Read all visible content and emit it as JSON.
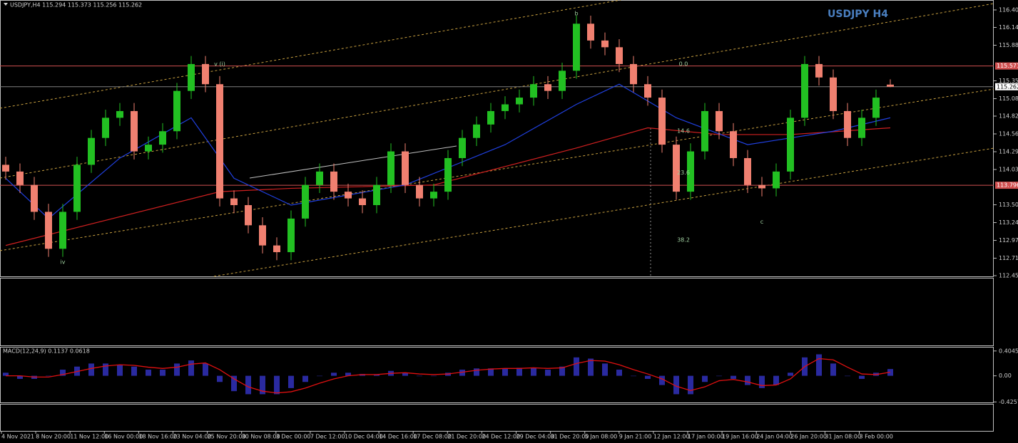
{
  "chart_data": {
    "type": "candlestick",
    "header": "USDJPY,H4  115.294 115.373 115.256 115.262",
    "title": "USDJPY H4",
    "ylim": [
      112.44,
      116.553
    ],
    "yticks": [
      116.405,
      116.145,
      {
        "value": 115.88,
        "label": "115.880"
      },
      115.35,
      115.085,
      114.825,
      {
        "value": 114.56,
        "label": "114.560"
      },
      114.295,
      {
        "value": 114.03,
        "label": "114.030"
      },
      113.505,
      {
        "value": 113.24,
        "label": "113.240"
      },
      112.975,
      {
        "value": 112.71,
        "label": "112.710"
      },
      {
        "value": 112.45,
        "label": "112.450"
      }
    ],
    "levels": [
      {
        "value": 115.571,
        "color": "#d05050"
      },
      {
        "value": 115.262,
        "color": "#808080"
      },
      {
        "value": 113.796,
        "color": "#d05050"
      }
    ],
    "up_color": "#22c022",
    "down_color": "#f08070",
    "ohlc": [
      [
        114.1,
        114.22,
        113.88,
        114.0
      ],
      [
        114.0,
        114.12,
        113.68,
        113.8
      ],
      [
        113.8,
        113.92,
        113.28,
        113.4
      ],
      [
        113.4,
        113.52,
        112.73,
        112.85
      ],
      [
        112.85,
        113.52,
        112.73,
        113.4
      ],
      [
        113.4,
        114.22,
        113.28,
        114.1
      ],
      [
        114.1,
        114.62,
        113.98,
        114.5
      ],
      [
        114.5,
        114.92,
        114.38,
        114.8
      ],
      [
        114.8,
        115.02,
        114.68,
        114.9
      ],
      [
        114.9,
        115.02,
        114.18,
        114.3
      ],
      [
        114.3,
        114.52,
        114.18,
        114.4
      ],
      [
        114.4,
        114.72,
        114.28,
        114.6
      ],
      [
        114.6,
        115.32,
        114.48,
        115.2
      ],
      [
        115.2,
        115.72,
        115.08,
        115.6
      ],
      [
        115.6,
        115.72,
        115.18,
        115.3
      ],
      [
        115.3,
        115.42,
        113.48,
        113.6
      ],
      [
        113.6,
        113.72,
        113.38,
        113.5
      ],
      [
        113.5,
        113.62,
        113.08,
        113.2
      ],
      [
        113.2,
        113.32,
        112.78,
        112.9
      ],
      [
        112.9,
        113.02,
        112.68,
        112.8
      ],
      [
        112.8,
        113.42,
        112.68,
        113.3
      ],
      [
        113.3,
        113.92,
        113.18,
        113.8
      ],
      [
        113.8,
        114.12,
        113.68,
        114.0
      ],
      [
        114.0,
        114.12,
        113.58,
        113.7
      ],
      [
        113.7,
        113.82,
        113.48,
        113.6
      ],
      [
        113.6,
        113.72,
        113.38,
        113.5
      ],
      [
        113.5,
        113.92,
        113.38,
        113.8
      ],
      [
        113.8,
        114.42,
        113.68,
        114.3
      ],
      [
        114.3,
        114.42,
        113.68,
        113.8
      ],
      [
        113.8,
        113.92,
        113.48,
        113.6
      ],
      [
        113.6,
        113.82,
        113.48,
        113.7
      ],
      [
        113.7,
        114.32,
        113.58,
        114.2
      ],
      [
        114.2,
        114.62,
        114.08,
        114.5
      ],
      [
        114.5,
        114.82,
        114.38,
        114.7
      ],
      [
        114.7,
        115.02,
        114.58,
        114.9
      ],
      [
        114.9,
        115.12,
        114.78,
        115.0
      ],
      [
        115.0,
        115.22,
        114.88,
        115.1
      ],
      [
        115.1,
        115.42,
        114.98,
        115.3
      ],
      [
        115.3,
        115.42,
        115.08,
        115.2
      ],
      [
        115.2,
        115.62,
        115.08,
        115.5
      ],
      [
        115.5,
        116.32,
        115.38,
        116.2
      ],
      [
        116.2,
        116.32,
        115.83,
        115.95
      ],
      [
        115.95,
        116.07,
        115.73,
        115.85
      ],
      [
        115.85,
        115.97,
        115.48,
        115.6
      ],
      [
        115.6,
        115.72,
        115.18,
        115.3
      ],
      [
        115.3,
        115.42,
        114.98,
        115.1
      ],
      [
        115.1,
        115.22,
        114.28,
        114.4
      ],
      [
        114.4,
        114.52,
        113.58,
        113.7
      ],
      [
        113.7,
        114.42,
        113.58,
        114.3
      ],
      [
        114.3,
        115.02,
        114.18,
        114.9
      ],
      [
        114.9,
        115.02,
        114.48,
        114.6
      ],
      [
        114.6,
        114.72,
        114.08,
        114.2
      ],
      [
        114.2,
        114.32,
        113.68,
        113.8
      ],
      [
        113.8,
        113.92,
        113.63,
        113.75
      ],
      [
        113.75,
        114.12,
        113.63,
        114.0
      ],
      [
        114.0,
        114.92,
        113.88,
        114.8
      ],
      [
        114.8,
        115.72,
        114.68,
        115.6
      ],
      [
        115.6,
        115.72,
        115.28,
        115.4
      ],
      [
        115.4,
        115.52,
        114.78,
        114.9
      ],
      [
        114.9,
        115.02,
        114.38,
        114.5
      ],
      [
        114.5,
        114.92,
        114.38,
        114.8
      ],
      [
        114.8,
        115.22,
        114.68,
        115.1
      ],
      [
        115.294,
        115.373,
        115.256,
        115.262
      ]
    ],
    "moving_averages": [
      {
        "color": "#d02020",
        "points": [
          [
            0,
            112.9
          ],
          [
            15,
            113.7
          ],
          [
            20,
            113.75
          ],
          [
            30,
            113.8
          ],
          [
            40,
            114.35
          ],
          [
            45,
            114.65
          ],
          [
            50,
            114.55
          ],
          [
            55,
            114.55
          ],
          [
            62,
            114.65
          ]
        ]
      },
      {
        "color": "#2040e0",
        "points": [
          [
            0,
            113.9
          ],
          [
            3,
            113.3
          ],
          [
            8,
            114.2
          ],
          [
            13,
            114.8
          ],
          [
            16,
            113.9
          ],
          [
            20,
            113.5
          ],
          [
            28,
            113.8
          ],
          [
            35,
            114.4
          ],
          [
            40,
            115.0
          ],
          [
            43,
            115.3
          ],
          [
            47,
            114.8
          ],
          [
            52,
            114.4
          ],
          [
            55,
            114.5
          ],
          [
            58,
            114.6
          ],
          [
            62,
            114.8
          ]
        ]
      }
    ],
    "annotations": [
      {
        "text": "b",
        "at": [
          40,
          116.35
        ]
      },
      {
        "text": "c",
        "at": [
          53,
          113.25
        ]
      },
      {
        "text": "iv",
        "at": [
          4,
          112.65
        ]
      },
      {
        "text": "v (i)",
        "at": [
          15,
          115.6
        ]
      },
      {
        "text": "0.0",
        "at": [
          47.5,
          115.6
        ]
      },
      {
        "text": "14.6",
        "at": [
          47.5,
          114.6
        ]
      },
      {
        "text": "23.6",
        "at": [
          47.5,
          113.98
        ]
      },
      {
        "text": "38.2",
        "at": [
          47.5,
          112.98
        ]
      }
    ],
    "xlabels": [
      "4 Nov 2021",
      "8 Nov 20:00",
      "11 Nov 12:00",
      "16 Nov 00:00",
      "18 Nov 16:00",
      "23 Nov 04:00",
      "25 Nov 20:00",
      "30 Nov 08:00",
      "3 Dec 00:00",
      "7 Dec 12:00",
      "10 Dec 04:00",
      "14 Dec 16:00",
      "17 Dec 08:00",
      "21 Dec 20:00",
      "24 Dec 12:00",
      "29 Dec 04:00",
      "31 Dec 20:00",
      "5 Jan 08:00",
      "9 Jan 21:00",
      "12 Jan 12:00",
      "17 Jan 00:00",
      "19 Jan 16:00",
      "24 Jan 04:00",
      "26 Jan 20:00",
      "31 Jan 08:00",
      "3 Feb 00:00"
    ],
    "macd": {
      "label": "MACD(12,24,9) 0.1137 0.0618",
      "ylim": [
        -0.445,
        0.46
      ],
      "yticks": [
        0.4045,
        {
          "value": 0,
          "label": "0.00"
        },
        -0.4257
      ],
      "hist_color": "#2a2aa0",
      "signal_color": "#e01010",
      "values": [
        0.05,
        -0.05,
        -0.05,
        0.0,
        0.1,
        0.15,
        0.2,
        0.2,
        0.18,
        0.15,
        0.1,
        0.1,
        0.2,
        0.25,
        0.2,
        -0.1,
        -0.25,
        -0.3,
        -0.3,
        -0.3,
        -0.2,
        -0.1,
        0.0,
        0.05,
        0.05,
        0.03,
        0.02,
        0.08,
        0.05,
        0.0,
        0.0,
        0.05,
        0.1,
        0.12,
        0.12,
        0.12,
        0.13,
        0.13,
        0.1,
        0.15,
        0.3,
        0.28,
        0.2,
        0.1,
        0.0,
        -0.05,
        -0.15,
        -0.3,
        -0.3,
        -0.1,
        0.0,
        -0.05,
        -0.15,
        -0.2,
        -0.15,
        0.05,
        0.3,
        0.35,
        0.2,
        0.0,
        -0.05,
        0.05,
        0.11
      ],
      "signal": [
        0.0,
        0.0,
        -0.02,
        -0.02,
        0.02,
        0.07,
        0.12,
        0.16,
        0.18,
        0.17,
        0.14,
        0.12,
        0.14,
        0.19,
        0.21,
        0.1,
        -0.05,
        -0.18,
        -0.25,
        -0.28,
        -0.26,
        -0.2,
        -0.12,
        -0.05,
        0.0,
        0.02,
        0.02,
        0.04,
        0.05,
        0.03,
        0.02,
        0.03,
        0.06,
        0.09,
        0.11,
        0.12,
        0.12,
        0.13,
        0.12,
        0.13,
        0.2,
        0.25,
        0.24,
        0.18,
        0.1,
        0.03,
        -0.05,
        -0.17,
        -0.24,
        -0.18,
        -0.08,
        -0.06,
        -0.1,
        -0.16,
        -0.15,
        -0.05,
        0.15,
        0.28,
        0.26,
        0.14,
        0.03,
        0.02,
        0.06
      ]
    }
  }
}
